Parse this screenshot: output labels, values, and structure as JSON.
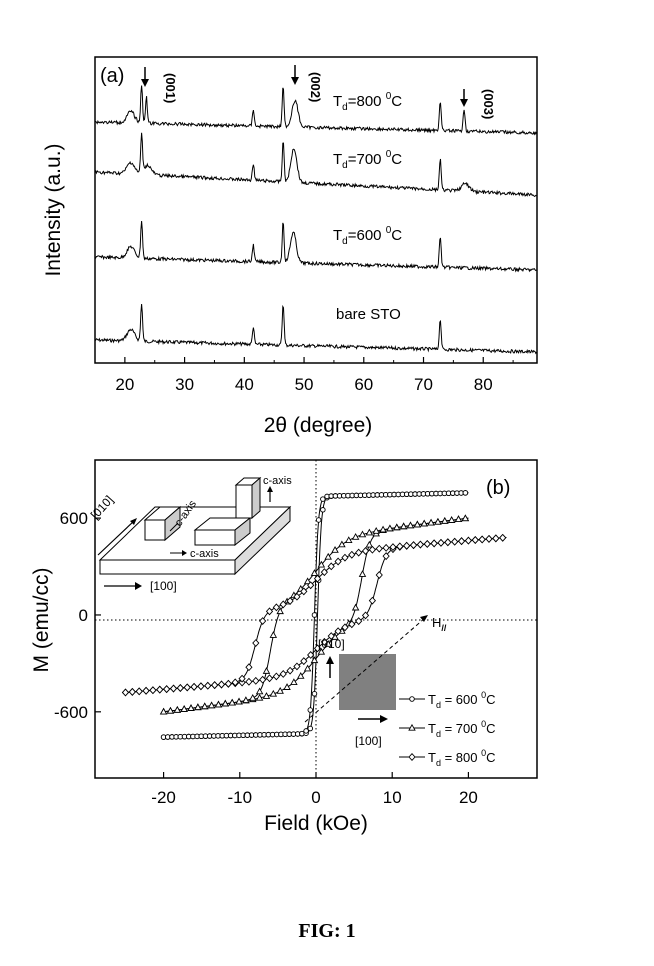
{
  "figure_caption": "FIG: 1",
  "chart_data": [
    {
      "type": "line",
      "panel_label": "(a)",
      "xlabel": "2θ (degree)",
      "ylabel": "Intensity (a.u.)",
      "xlim": [
        15,
        89
      ],
      "xticks": [
        20,
        30,
        40,
        50,
        60,
        70,
        80
      ],
      "y_units": "arbitrary (curves vertically offset)",
      "series": [
        {
          "name": "bare STO",
          "peaks": [
            {
              "x": 21.0,
              "h": 0.3
            },
            {
              "x": 22.8,
              "h": 1.0
            },
            {
              "x": 41.5,
              "h": 0.45
            },
            {
              "x": 46.5,
              "h": 1.1
            },
            {
              "x": 72.8,
              "h": 0.8
            }
          ]
        },
        {
          "name": "600",
          "peaks": [
            {
              "x": 21.0,
              "h": 0.3
            },
            {
              "x": 22.8,
              "h": 1.0
            },
            {
              "x": 41.5,
              "h": 0.45
            },
            {
              "x": 46.5,
              "h": 1.1
            },
            {
              "x": 48.2,
              "h": 0.8
            },
            {
              "x": 72.8,
              "h": 0.8
            }
          ]
        },
        {
          "name": "700",
          "peaks": [
            {
              "x": 21.0,
              "h": 0.3
            },
            {
              "x": 22.8,
              "h": 1.0
            },
            {
              "x": 23.8,
              "h": 0.25
            },
            {
              "x": 41.5,
              "h": 0.45
            },
            {
              "x": 46.5,
              "h": 1.1
            },
            {
              "x": 48.3,
              "h": 0.9
            },
            {
              "x": 72.8,
              "h": 0.8
            },
            {
              "x": 77.0,
              "h": 0.2
            }
          ]
        },
        {
          "name": "800",
          "peaks": [
            {
              "x": 21.0,
              "h": 0.3
            },
            {
              "x": 22.8,
              "h": 1.0
            },
            {
              "x": 23.6,
              "h": 0.7
            },
            {
              "x": 41.5,
              "h": 0.45
            },
            {
              "x": 46.5,
              "h": 1.1
            },
            {
              "x": 48.5,
              "h": 0.7
            },
            {
              "x": 72.8,
              "h": 0.8
            },
            {
              "x": 76.8,
              "h": 0.6
            }
          ]
        }
      ],
      "curve_labels": [
        {
          "sub": "d",
          "pre": "T",
          "post": "=800 ",
          "sup": "0",
          "unit": "C"
        },
        {
          "sub": "d",
          "pre": "T",
          "post": "=700 ",
          "sup": "0",
          "unit": "C"
        },
        {
          "sub": "d",
          "pre": "T",
          "post": "=600 ",
          "sup": "0",
          "unit": "C"
        },
        {
          "text": "bare STO"
        }
      ],
      "annotations": [
        "(001)",
        "(002)",
        "(003)"
      ]
    },
    {
      "type": "line",
      "panel_label": "(b)",
      "xlabel": "Field (kOe)",
      "ylabel": "M (emu/cc)",
      "xlim": [
        -29,
        29
      ],
      "ylim": [
        -1010,
        960
      ],
      "xticks": [
        -20,
        -10,
        0,
        10,
        20
      ],
      "yticks": [
        -600,
        0,
        600
      ],
      "series": [
        {
          "name": "600",
          "marker": "circle",
          "xmax": 20,
          "ms": 790,
          "hc": 0.2
        },
        {
          "name": "700",
          "marker": "triangle",
          "xmax": 20,
          "ms": 600,
          "hc": 6
        },
        {
          "name": "800",
          "marker": "diamond",
          "xmax": 25,
          "ms": 480,
          "hc": 8
        }
      ],
      "legend": [
        {
          "pre": "T",
          "sub": "d",
          "post": " = 600 ",
          "sup": "0",
          "unit": "C"
        },
        {
          "pre": "T",
          "sub": "d",
          "post": " = 700 ",
          "sup": "0",
          "unit": "C"
        },
        {
          "pre": "T",
          "sub": "d",
          "post": " = 800 ",
          "sup": "0",
          "unit": "C"
        }
      ],
      "inset_labels": {
        "dir_010_top": "[010]",
        "dir_100_top": "[100]",
        "c_axis_1": "c-axis",
        "c_axis_2": "c-axis",
        "c_axis_3": "c-axis",
        "dir_010_bot": "[010]",
        "dir_100_bot": "[100]",
        "h_label": "H",
        "h_sub": "//"
      }
    }
  ]
}
